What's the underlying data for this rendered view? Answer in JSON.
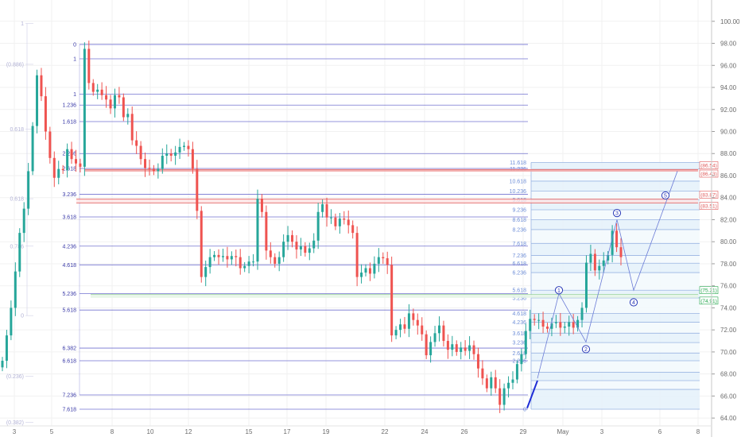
{
  "colors": {
    "up": "#26a69a",
    "down": "#ef5350",
    "fib_line": "#5b5bc8",
    "fib_label": "#3b3ba8",
    "fib_label_right": "#6f8fd8",
    "fib_fill": "#e6f2fb",
    "target_box": "#fde0e0",
    "target_line": "#e05a5a",
    "impulse_line": "#1e2cd6",
    "projection": "#6b7bd6",
    "wave_circle": "#2b3bb8",
    "green_box_text": "#22a64a",
    "axis_text": "#6b6b6b",
    "grid": "#f1f1f1"
  },
  "chart_data": {
    "type": "candlestick",
    "title": "",
    "xlabel": "",
    "ylabel": "",
    "ylim": [
      63.0,
      101.5
    ],
    "y_ticks": [
      "100.00",
      "98.00",
      "96.00",
      "94.00",
      "92.00",
      "90.00",
      "88.00",
      "86.00",
      "84.00",
      "82.00",
      "80.00",
      "78.00",
      "76.00",
      "74.00",
      "72.00",
      "70.00",
      "68.00",
      "66.00",
      "64.00"
    ],
    "x_ticks": [
      "3",
      "5",
      "8",
      "10",
      "12",
      "15",
      "17",
      "19",
      "22",
      "24",
      "26",
      "29",
      "May",
      "3",
      "6",
      "8"
    ],
    "closes": [
      69.2,
      71.5,
      74.0,
      77.3,
      80.8,
      83.0,
      86.4,
      90.5,
      95.1,
      93.2,
      90.0,
      87.6,
      85.8,
      86.6,
      86.5,
      88.4,
      87.5,
      87.1,
      86.8,
      97.5,
      94.4,
      93.6,
      93.8,
      93.3,
      92.9,
      92.1,
      93.3,
      93.1,
      91.3,
      91.6,
      89.2,
      88.7,
      87.5,
      86.7,
      86.6,
      86.4,
      86.6,
      87.8,
      88.0,
      87.8,
      88.1,
      88.6,
      88.7,
      88.4,
      86.6,
      82.8,
      76.8,
      77.7,
      78.6,
      78.8,
      78.6,
      78.7,
      78.4,
      78.7,
      78.6,
      77.6,
      77.8,
      78.2,
      78.2,
      83.9,
      82.7,
      79.2,
      78.6,
      78.0,
      78.6,
      80.0,
      80.6,
      80.0,
      79.3,
      79.6,
      79.0,
      79.4,
      80.1,
      82.7,
      83.4,
      82.2,
      82.2,
      81.4,
      82.1,
      82.0,
      81.5,
      80.8,
      76.8,
      77.2,
      77.6,
      77.1,
      78.0,
      78.6,
      78.5,
      77.9,
      71.5,
      72.0,
      72.5,
      72.1,
      73.5,
      72.9,
      72.4,
      71.6,
      69.7,
      70.9,
      71.7,
      72.4,
      71.0,
      70.2,
      70.7,
      70.0,
      70.4,
      70.1,
      70.6,
      69.8,
      68.5,
      67.6,
      66.7,
      67.7,
      66.7,
      65.2,
      66.7,
      67.2,
      67.5,
      68.9,
      69.8,
      71.9,
      73.0,
      72.9,
      72.9,
      72.3,
      72.1,
      72.6,
      72.7,
      72.2,
      72.3,
      72.7,
      72.2,
      72.9,
      74.0,
      78.1,
      78.9,
      77.4,
      77.8,
      78.3,
      78.8,
      81.0,
      79.5,
      78.6
    ],
    "fib_left": {
      "values": [
        97.9,
        96.6,
        93.4,
        92.4,
        90.9,
        88.0,
        86.65,
        84.3,
        82.25,
        79.6,
        77.9,
        75.3,
        73.8,
        70.35,
        69.2,
        66.1,
        64.8
      ],
      "labels": [
        "0",
        "1",
        "1",
        "1.236",
        "1.618",
        "2.236",
        "2.618",
        "3.236",
        "3.618",
        "4.236",
        "4.618",
        "5.236",
        "5.618",
        "6.382",
        "6.618",
        "7.236",
        "7.618"
      ]
    },
    "fib_right": {
      "values": [
        87.2,
        86.6,
        85.5,
        84.6,
        83.8,
        82.9,
        82.0,
        81.1,
        79.85,
        78.75,
        78.05,
        77.2,
        75.6,
        74.9,
        73.5,
        72.7,
        71.7,
        70.85,
        69.9,
        69.2,
        68.15,
        67.4,
        66.6,
        64.8
      ],
      "labels": [
        "11.618",
        "11.236",
        "10.618",
        "10.236",
        "9.618",
        "9.236",
        "8.618",
        "8.236",
        "7.618",
        "7.236",
        "6.618",
        "6.236",
        "5.618",
        "5.236",
        "4.618",
        "4.236",
        "3.618",
        "3.236",
        "2.618",
        "2.236",
        "",
        "",
        "",
        "0"
      ]
    },
    "left_faded_labels": [
      {
        "v": 96.1,
        "t": "(0.886)"
      },
      {
        "v": 90.2,
        "t": "0.618"
      },
      {
        "v": 83.9,
        "t": "0.618"
      },
      {
        "v": 79.6,
        "t": "0.786"
      },
      {
        "v": 73.3,
        "t": "0"
      },
      {
        "v": 67.8,
        "t": "(0.236)"
      },
      {
        "v": 63.6,
        "t": "(0.382)"
      },
      {
        "v": 99.8,
        "t": "1"
      }
    ],
    "price_boxes": [
      {
        "t": "(86.54)",
        "color": "red"
      },
      {
        "t": "(86.43)",
        "color": "red"
      },
      {
        "t": "(83.87)",
        "color": "red"
      },
      {
        "t": "(83.51)",
        "color": "red"
      },
      {
        "t": "(75.21)",
        "color": "green"
      },
      {
        "t": "(74.91)",
        "color": "green"
      }
    ],
    "waves": [
      {
        "label": "1",
        "v": 75.6
      },
      {
        "label": "2",
        "v": 70.25
      },
      {
        "label": "3",
        "v": 82.6
      },
      {
        "label": "4",
        "v": 74.5
      },
      {
        "label": "5",
        "v": 84.2
      }
    ]
  }
}
